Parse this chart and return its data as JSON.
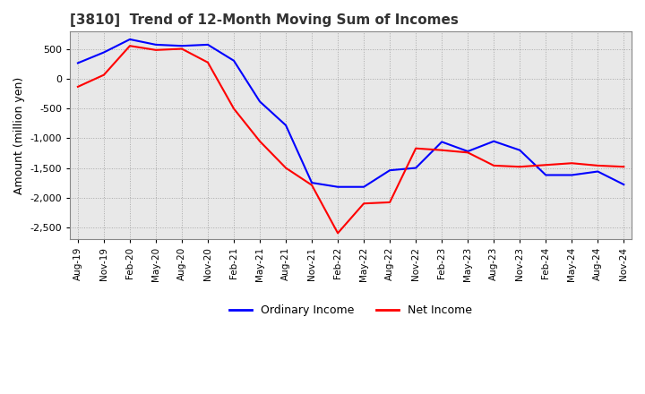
{
  "title": "[3810]  Trend of 12-Month Moving Sum of Incomes",
  "ylabel": "Amount (million yen)",
  "ylim": [
    -2700,
    800
  ],
  "yticks": [
    500,
    0,
    -500,
    -1000,
    -1500,
    -2000,
    -2500
  ],
  "plot_bg_color": "#e8e8e8",
  "background_color": "#ffffff",
  "grid_color": "#999999",
  "ordinary_income_color": "#0000ff",
  "net_income_color": "#ff0000",
  "x_labels": [
    "Aug-19",
    "Nov-19",
    "Feb-20",
    "May-20",
    "Aug-20",
    "Nov-20",
    "Feb-21",
    "May-21",
    "Aug-21",
    "Nov-21",
    "Feb-22",
    "May-22",
    "Aug-22",
    "Nov-22",
    "Feb-23",
    "May-23",
    "Aug-23",
    "Nov-23",
    "Feb-24",
    "May-24",
    "Aug-24",
    "Nov-24"
  ],
  "ordinary_income": [
    270,
    450,
    670,
    580,
    560,
    580,
    310,
    -380,
    -780,
    -1750,
    -1820,
    -1820,
    -1540,
    -1500,
    -1060,
    -1220,
    -1050,
    -1200,
    -1620,
    -1620,
    -1560,
    -1780
  ],
  "net_income": [
    -130,
    70,
    560,
    490,
    510,
    280,
    -500,
    -1050,
    -1500,
    -1790,
    -2600,
    -2100,
    -2080,
    -1170,
    -1200,
    -1240,
    -1460,
    -1480,
    -1450,
    -1420,
    -1460,
    -1480
  ]
}
